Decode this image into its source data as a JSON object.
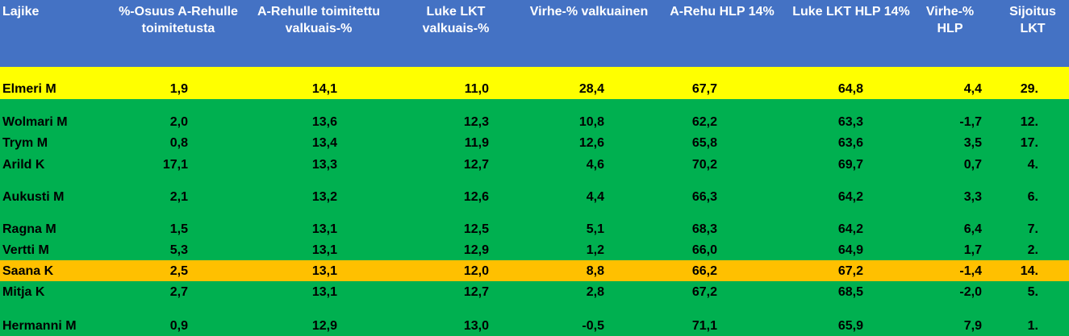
{
  "table": {
    "header": [
      "Lajike",
      "%-Osuus A-Rehulle toimitetusta",
      "A-Rehulle toimitettu valkuais-%",
      "Luke LKT valkuais-%",
      "Virhe-% valkuainen",
      "A-Rehu HLP 14%",
      "Luke LKT HLP 14%",
      "Virhe-% HLP",
      "Sijoitus LKT"
    ],
    "rows": [
      [
        "Elmeri M",
        "1,9",
        "14,1",
        "11,0",
        "28,4",
        "67,7",
        "64,8",
        "4,4",
        "29."
      ],
      [
        "Wolmari M",
        "2,0",
        "13,6",
        "12,3",
        "10,8",
        "62,2",
        "63,3",
        "-1,7",
        "12."
      ],
      [
        "Trym M",
        "0,8",
        "13,4",
        "11,9",
        "12,6",
        "65,8",
        "63,6",
        "3,5",
        "17."
      ],
      [
        "Arild K",
        "17,1",
        "13,3",
        "12,7",
        "4,6",
        "70,2",
        "69,7",
        "0,7",
        "4."
      ],
      [
        "Aukusti M",
        "2,1",
        "13,2",
        "12,6",
        "4,4",
        "66,3",
        "64,2",
        "3,3",
        "6."
      ],
      [
        "Ragna M",
        "1,5",
        "13,1",
        "12,5",
        "5,1",
        "68,3",
        "64,2",
        "6,4",
        "7."
      ],
      [
        "Vertti M",
        "5,3",
        "13,1",
        "12,9",
        "1,2",
        "66,0",
        "64,9",
        "1,7",
        "2."
      ],
      [
        "Saana K",
        "2,5",
        "13,1",
        "12,0",
        "8,8",
        "66,2",
        "67,2",
        "-1,4",
        "14."
      ],
      [
        "Mitja K",
        "2,7",
        "13,1",
        "12,7",
        "2,8",
        "67,2",
        "68,5",
        "-2,0",
        "5."
      ],
      [
        "Hermanni M",
        "0,9",
        "12,9",
        "13,0",
        "-0,5",
        "71,1",
        "65,9",
        "7,9",
        "1."
      ]
    ]
  }
}
